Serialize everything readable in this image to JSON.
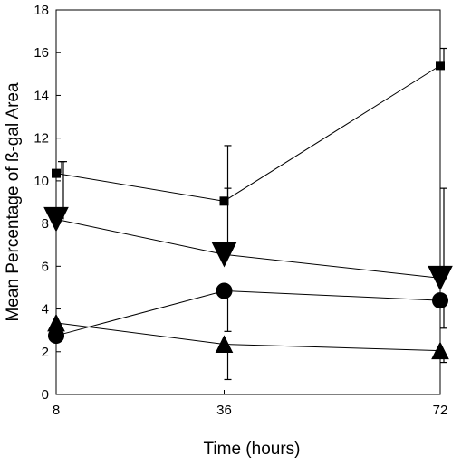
{
  "chart_data": {
    "type": "line",
    "title": "",
    "xlabel": "Time (hours)",
    "ylabel": "Mean Percentage of ß-gal Area",
    "xlim": [
      8,
      72
    ],
    "ylim": [
      0,
      18
    ],
    "xticks": [
      8,
      36,
      72
    ],
    "yticks": [
      0,
      2,
      4,
      6,
      8,
      10,
      12,
      14,
      16,
      18
    ],
    "grid": false,
    "legend": "none",
    "series": [
      {
        "marker": "square",
        "points": [
          {
            "x": 8,
            "y": 10.35,
            "err_up": 0.55,
            "err_down": 0
          },
          {
            "x": 36,
            "y": 9.05,
            "err_up": 2.6,
            "err_down": 0
          },
          {
            "x": 72,
            "y": 15.4,
            "err_up": 0.8,
            "err_down": 0
          }
        ]
      },
      {
        "marker": "triangle-down",
        "points": [
          {
            "x": 8,
            "y": 8.2,
            "err_up": 2.7,
            "err_down": 0
          },
          {
            "x": 36,
            "y": 6.55,
            "err_up": 3.1,
            "err_down": 0
          },
          {
            "x": 72,
            "y": 5.45,
            "err_up": 4.2,
            "err_down": 0
          }
        ]
      },
      {
        "marker": "circle",
        "points": [
          {
            "x": 8,
            "y": 2.75,
            "err_up": 0,
            "err_down": 0
          },
          {
            "x": 36,
            "y": 4.85,
            "err_up": 0,
            "err_down": 1.9
          },
          {
            "x": 72,
            "y": 4.4,
            "err_up": 0,
            "err_down": 1.3
          }
        ]
      },
      {
        "marker": "triangle-up",
        "points": [
          {
            "x": 8,
            "y": 3.35,
            "err_up": 0,
            "err_down": 0.8
          },
          {
            "x": 36,
            "y": 2.35,
            "err_up": 0,
            "err_down": 1.65
          },
          {
            "x": 72,
            "y": 2.05,
            "err_up": 0,
            "err_down": 0.55
          }
        ]
      }
    ]
  }
}
